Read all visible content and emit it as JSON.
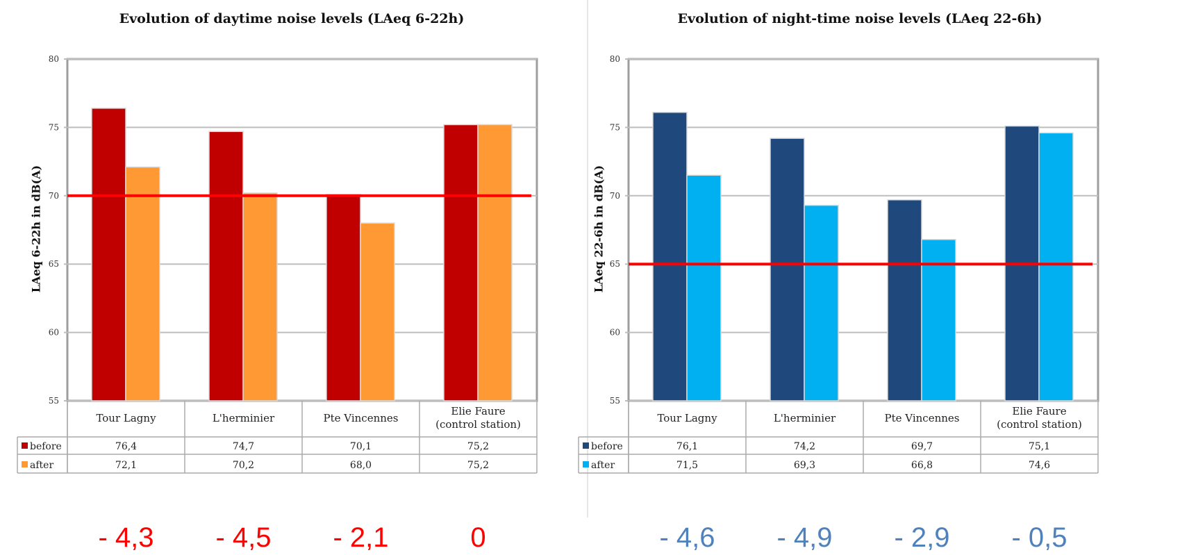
{
  "charts": [
    {
      "id": "day",
      "type": "bar",
      "title": "Evolution of daytime noise levels (LAeq 6-22h)",
      "ylabel": "LAeq 6-22h in dB(A)",
      "ylim": [
        55,
        80
      ],
      "yticks": [
        55,
        60,
        65,
        70,
        75,
        80
      ],
      "grid": true,
      "categories": [
        [
          "Tour Lagny"
        ],
        [
          "L'herminier"
        ],
        [
          "Pte Vincennes"
        ],
        [
          "Elie Faure",
          "(control station)"
        ]
      ],
      "series": [
        {
          "name": "before",
          "color": "#c00000",
          "values": [
            76.4,
            74.7,
            70.1,
            75.2
          ],
          "labels": [
            "76,4",
            "74,7",
            "70,1",
            "75,2"
          ]
        },
        {
          "name": "after",
          "color": "#ff9933",
          "values": [
            72.1,
            70.2,
            68.0,
            75.2
          ],
          "labels": [
            "72,1",
            "70,2",
            "68,0",
            "75,2"
          ]
        }
      ],
      "threshold": 70,
      "threshold_color": "#ff0000",
      "differences": [
        "- 4,3",
        "- 4,5",
        "- 2,1",
        "0"
      ],
      "difference_color": "#ff0000"
    },
    {
      "id": "night",
      "type": "bar",
      "title": "Evolution of night-time noise levels (LAeq 22-6h)",
      "ylabel": "LAeq 22-6h in dB(A)",
      "ylim": [
        55,
        80
      ],
      "yticks": [
        55,
        60,
        65,
        70,
        75,
        80
      ],
      "grid": true,
      "categories": [
        [
          "Tour Lagny"
        ],
        [
          "L'herminier"
        ],
        [
          "Pte Vincennes"
        ],
        [
          "Elie Faure",
          "(control station)"
        ]
      ],
      "series": [
        {
          "name": "before",
          "color": "#1f497d",
          "values": [
            76.1,
            74.2,
            69.7,
            75.1
          ],
          "labels": [
            "76,1",
            "74,2",
            "69,7",
            "75,1"
          ]
        },
        {
          "name": "after",
          "color": "#00b0f0",
          "values": [
            71.5,
            69.3,
            66.8,
            74.6
          ],
          "labels": [
            "71,5",
            "69,3",
            "66,8",
            "74,6"
          ]
        }
      ],
      "threshold": 65,
      "threshold_color": "#ff0000",
      "differences": [
        "- 4,6",
        "- 4,9",
        "- 2,9",
        "- 0,5"
      ],
      "difference_color": "#4f81bd"
    }
  ]
}
